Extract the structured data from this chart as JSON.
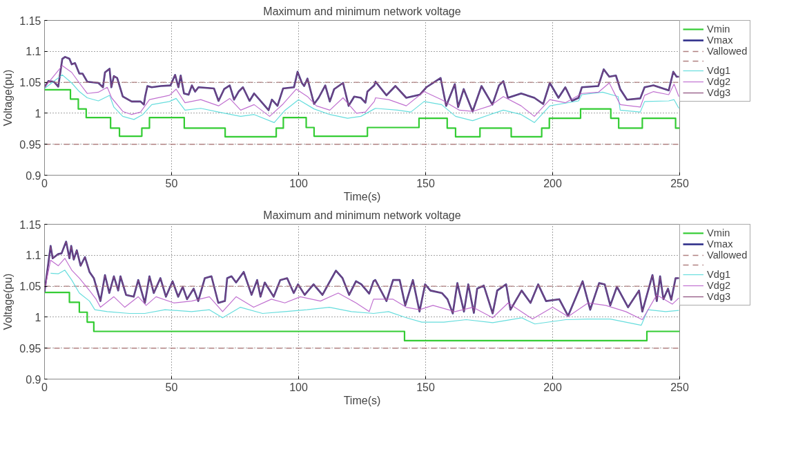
{
  "chart_data": [
    {
      "type": "line",
      "title": "Maximum and minimum network voltage",
      "xlabel": "Time(s)",
      "ylabel": "Voltage(pu)",
      "xlim": [
        0,
        250
      ],
      "ylim": [
        0.9,
        1.15
      ],
      "xticks": [
        0,
        50,
        100,
        150,
        200,
        250
      ],
      "yticks": [
        0.9,
        0.95,
        1,
        1.05,
        1.1,
        1.15
      ],
      "grid": true,
      "legend": "right",
      "series": [
        {
          "name": "Vmin",
          "type": "step",
          "color": "#33cc33",
          "x": [
            0,
            10.2,
            13.3,
            16.4,
            26,
            29.5,
            38.3,
            41.3,
            55,
            71.1,
            91.2,
            94,
            103,
            106.1,
            127.1,
            147.4,
            158.5,
            161.8,
            171.4,
            183.7,
            195.7,
            198.7,
            211,
            222.9,
            226,
            235.3,
            248.4,
            250
          ],
          "values": [
            1.038,
            1.023,
            1.007,
            0.993,
            0.976,
            0.963,
            0.976,
            0.993,
            0.976,
            0.962,
            0.976,
            0.993,
            0.977,
            0.963,
            0.977,
            0.992,
            0.976,
            0.962,
            0.976,
            0.962,
            0.976,
            0.992,
            1.007,
            0.992,
            0.976,
            0.992,
            0.976,
            0.976
          ]
        },
        {
          "name": "Vmax",
          "color": "#2e2e8a",
          "x": [
            0,
            1.5,
            3.7,
            5.4,
            7.0,
            8.1,
            9.8,
            10.7,
            12,
            13.7,
            15,
            16.8,
            21.2,
            23,
            23.8,
            25.6,
            26.3,
            27.3,
            28.6,
            30.8,
            34.3,
            37.8,
            39.1,
            39.6,
            40.5,
            42.2,
            45.7,
            49.6,
            51.4,
            52.7,
            53.6,
            54.9,
            56.7,
            58,
            59.3,
            60.6,
            66.7,
            68.5,
            70.7,
            72.9,
            74.6,
            76.4,
            78.1,
            80.7,
            82.5,
            88.2,
            89.5,
            91.7,
            93.9,
            98.2,
            99.6,
            101.3,
            102.2,
            103.5,
            106.1,
            107.9,
            110.5,
            112.3,
            114,
            117.5,
            119.7,
            121.9,
            124.5,
            126.3,
            127.1,
            129.8,
            130.3,
            134.6,
            138.1,
            142.4,
            147.7,
            150.3,
            155.9,
            158.1,
            161.5,
            162.8,
            165,
            168.5,
            172,
            176.3,
            178.9,
            180.6,
            182.4,
            187.6,
            192.8,
            196.3,
            198.9,
            202.3,
            205,
            207.6,
            210.2,
            211.5,
            218,
            220.1,
            222.3,
            224.9,
            226.6,
            229.3,
            234.5,
            236.2,
            239.7,
            245.7,
            247.5,
            248.8,
            249.7
          ],
          "values": [
            1.042,
            1.052,
            1.051,
            1.043,
            1.088,
            1.091,
            1.088,
            1.079,
            1.081,
            1.064,
            1.064,
            1.051,
            1.049,
            1.042,
            1.066,
            1.072,
            1.042,
            1.06,
            1.057,
            1.027,
            1.019,
            1.019,
            1.014,
            1.027,
            1.044,
            1.042,
            1.044,
            1.045,
            1.062,
            1.042,
            1.061,
            1.032,
            1.03,
            1.045,
            1.035,
            1.042,
            1.04,
            1.02,
            1.039,
            1.045,
            1.022,
            1.035,
            1.042,
            1.02,
            1.032,
            1.005,
            1.022,
            1.012,
            1.04,
            1.042,
            1.067,
            1.049,
            1.044,
            1.056,
            1.015,
            1.025,
            1.045,
            1.019,
            1.039,
            1.049,
            1.012,
            1.027,
            1.025,
            1.017,
            1.035,
            1.045,
            1.051,
            1.029,
            1.044,
            1.025,
            1.03,
            1.042,
            1.057,
            1.012,
            1.047,
            1.01,
            1.039,
            1.003,
            1.044,
            1.014,
            1.045,
            1.052,
            1.025,
            1.032,
            1.025,
            1.015,
            1.049,
            1.025,
            1.042,
            1.02,
            1.025,
            1.042,
            1.044,
            1.071,
            1.059,
            1.061,
            1.039,
            1.022,
            1.024,
            1.042,
            1.045,
            1.037,
            1.067,
            1.059,
            1.059
          ]
        },
        {
          "name": "Vallowed",
          "color": "#b08080",
          "line_style": "dashed",
          "x": [
            0,
            250
          ],
          "values": [
            1.05,
            1.05
          ]
        },
        {
          "color": "#b08080",
          "line_style": "dashed",
          "x": [
            0,
            250
          ],
          "values": [
            0.95,
            0.95
          ]
        },
        {
          "name": "Vdg1",
          "color": "#66dddd",
          "x": [
            0,
            7,
            10.7,
            13.7,
            16.8,
            21.2,
            25.6,
            27.3,
            30.8,
            35.2,
            38.7,
            42.2,
            49.2,
            51.8,
            55.3,
            61.5,
            68.5,
            77.2,
            82.5,
            90.4,
            94.7,
            100,
            106.1,
            112.3,
            119.3,
            124.5,
            129.8,
            130.3,
            139,
            144.2,
            149.4,
            156.3,
            161.8,
            168.5,
            175.4,
            180.6,
            187.6,
            192.8,
            198.9,
            210.2,
            211.5,
            219.7,
            225.8,
            226.6,
            234.5,
            236.2,
            245.7,
            247.8,
            249.7
          ],
          "values": [
            1.04,
            1.062,
            1.049,
            1.035,
            1.025,
            1.02,
            1.029,
            1.01,
            0.995,
            0.99,
            0.998,
            1.014,
            1.019,
            1.024,
            1.005,
            1.008,
            1.002,
            0.995,
            0.998,
            0.985,
            1.005,
            1.022,
            1.007,
            0.998,
            0.992,
            0.995,
            1.007,
            1.008,
            1.005,
            1.002,
            1.019,
            1.014,
            0.995,
            0.988,
            0.998,
            1.005,
            0.998,
            0.985,
            1.012,
            1.02,
            1.03,
            1.034,
            1.027,
            1.005,
            1.002,
            1.019,
            1.02,
            1.022,
            1.008
          ]
        },
        {
          "name": "Vdg2",
          "color": "#c070d0",
          "x": [
            0,
            7,
            10.7,
            13.7,
            16.8,
            21.2,
            24.7,
            26.4,
            30.8,
            34.3,
            37.8,
            41.3,
            49.2,
            51.8,
            55.3,
            61.5,
            68.5,
            72.9,
            77.2,
            82.5,
            88.6,
            93.9,
            99.1,
            103.5,
            107,
            112.3,
            117.5,
            122.8,
            126.3,
            129.8,
            130.3,
            135.5,
            142.4,
            149.4,
            156.3,
            163.3,
            168.5,
            175.4,
            180.6,
            187.6,
            192.8,
            198.9,
            205,
            211.5,
            218,
            222.3,
            226.6,
            234.5,
            236.2,
            239.7,
            245.7,
            247.8,
            249.7
          ],
          "values": [
            1.042,
            1.077,
            1.066,
            1.049,
            1.032,
            1.034,
            1.042,
            1.025,
            1.003,
            0.998,
            1.002,
            1.022,
            1.029,
            1.039,
            1.017,
            1.022,
            1.012,
            1.024,
            1.005,
            1.014,
            0.995,
            1.015,
            1.039,
            1.027,
            1.012,
            1.005,
            1.025,
            1.0,
            1.002,
            1.019,
            1.025,
            1.022,
            1.012,
            1.035,
            1.022,
            1.005,
            1.003,
            1.012,
            1.027,
            1.012,
            0.995,
            1.022,
            1.017,
            1.032,
            1.034,
            1.049,
            1.014,
            1.01,
            1.029,
            1.035,
            1.03,
            1.047,
            1.027
          ]
        },
        {
          "name": "Vdg3",
          "color": "#8a4a7a",
          "x": [
            0,
            1.5,
            3.7,
            5.4,
            7.0,
            8.1,
            9.8,
            10.7,
            12,
            13.7,
            15,
            16.8,
            21.2,
            23,
            23.8,
            25.6,
            26.3,
            27.3,
            28.6,
            30.8,
            34.3,
            37.8,
            39.1,
            39.6,
            40.5,
            42.2,
            45.7,
            49.6,
            51.4,
            52.7,
            53.6,
            54.9,
            56.7,
            58,
            59.3,
            60.6,
            66.7,
            68.5,
            70.7,
            72.9,
            74.6,
            76.4,
            78.1,
            80.7,
            82.5,
            88.2,
            89.5,
            91.7,
            93.9,
            98.2,
            99.6,
            101.3,
            102.2,
            103.5,
            106.1,
            107.9,
            110.5,
            112.3,
            114,
            117.5,
            119.7,
            121.9,
            124.5,
            126.3,
            127.1,
            129.8,
            130.3,
            134.6,
            138.1,
            142.4,
            147.7,
            150.3,
            155.9,
            158.1,
            161.5,
            162.8,
            165,
            168.5,
            172,
            176.3,
            178.9,
            180.6,
            182.4,
            187.6,
            192.8,
            196.3,
            198.9,
            202.3,
            205,
            207.6,
            210.2,
            211.5,
            218,
            220.1,
            222.3,
            224.9,
            226.6,
            229.3,
            234.5,
            236.2,
            239.7,
            245.7,
            247.5,
            248.8,
            249.7
          ],
          "values": [
            1.042,
            1.052,
            1.051,
            1.043,
            1.088,
            1.091,
            1.088,
            1.079,
            1.081,
            1.064,
            1.064,
            1.051,
            1.049,
            1.042,
            1.066,
            1.072,
            1.042,
            1.06,
            1.057,
            1.027,
            1.019,
            1.019,
            1.014,
            1.027,
            1.044,
            1.042,
            1.044,
            1.045,
            1.062,
            1.042,
            1.061,
            1.032,
            1.03,
            1.045,
            1.035,
            1.042,
            1.04,
            1.02,
            1.039,
            1.045,
            1.022,
            1.035,
            1.042,
            1.02,
            1.032,
            1.005,
            1.022,
            1.012,
            1.04,
            1.042,
            1.067,
            1.049,
            1.044,
            1.056,
            1.015,
            1.025,
            1.045,
            1.019,
            1.039,
            1.049,
            1.012,
            1.027,
            1.025,
            1.017,
            1.035,
            1.045,
            1.051,
            1.029,
            1.044,
            1.025,
            1.03,
            1.042,
            1.057,
            1.012,
            1.047,
            1.01,
            1.039,
            1.003,
            1.044,
            1.014,
            1.045,
            1.052,
            1.025,
            1.032,
            1.025,
            1.015,
            1.049,
            1.025,
            1.042,
            1.02,
            1.025,
            1.042,
            1.044,
            1.071,
            1.059,
            1.061,
            1.039,
            1.022,
            1.024,
            1.042,
            1.045,
            1.037,
            1.067,
            1.059,
            1.059
          ]
        }
      ]
    },
    {
      "type": "line",
      "title": "Maximum and minimum network voltage",
      "xlabel": "Time(s)",
      "ylabel": "Voltage(pu)",
      "xlim": [
        0,
        250
      ],
      "ylim": [
        0.9,
        1.15
      ],
      "xticks": [
        0,
        50,
        100,
        150,
        200,
        250
      ],
      "yticks": [
        0.9,
        0.95,
        1,
        1.05,
        1.1,
        1.15
      ],
      "grid": true,
      "legend": "right",
      "series": [
        {
          "name": "Vmin",
          "type": "step",
          "color": "#33cc33",
          "x": [
            0,
            9.8,
            13.7,
            16.8,
            19.4,
            141.7,
            237.1,
            250
          ],
          "values": [
            1.04,
            1.024,
            1.008,
            0.992,
            0.977,
            0.962,
            0.977,
            0.977
          ]
        },
        {
          "name": "Vmax",
          "color": "#2e2e8a",
          "x": [
            0,
            2.4,
            3.2,
            5.4,
            6.7,
            8.5,
            9.8,
            10.5,
            11.5,
            12.7,
            14.2,
            15.9,
            17.7,
            19.4,
            22,
            23.8,
            25.5,
            27.3,
            29,
            29.9,
            32.1,
            35.1,
            36.9,
            39.5,
            41.3,
            43,
            45.6,
            47.8,
            50.4,
            52.6,
            54.4,
            56.1,
            58.7,
            60.5,
            63.1,
            65.7,
            68.4,
            71,
            71.9,
            73.6,
            75.4,
            78.4,
            81.5,
            83.7,
            85,
            86.7,
            90.2,
            92.8,
            95.5,
            98.1,
            99.8,
            102.4,
            105.9,
            109.4,
            112.1,
            114.7,
            117.3,
            119.9,
            122.6,
            124.7,
            127.8,
            129.5,
            130.2,
            134.6,
            137.2,
            139.8,
            142,
            145,
            147.6,
            149.8,
            151.9,
            156.4,
            158.6,
            160.7,
            162.5,
            165.1,
            166.8,
            169,
            170.3,
            172.9,
            176.4,
            178.2,
            181.7,
            183.4,
            187.8,
            191.3,
            194.3,
            197.4,
            202.6,
            206.1,
            211.8,
            214.8,
            218.3,
            220.5,
            222.7,
            225.3,
            229.7,
            234,
            235.3,
            239.3,
            241,
            242.3,
            243.6,
            245.4,
            246.7,
            248.4,
            249.7
          ],
          "values": [
            1.041,
            1.115,
            1.095,
            1.102,
            1.103,
            1.122,
            1.095,
            1.115,
            1.093,
            1.108,
            1.083,
            1.097,
            1.073,
            1.063,
            1.026,
            1.068,
            1.039,
            1.066,
            1.043,
            1.066,
            1.036,
            1.033,
            1.06,
            1.023,
            1.066,
            1.039,
            1.063,
            1.033,
            1.058,
            1.033,
            1.049,
            1.029,
            1.046,
            1.026,
            1.063,
            1.066,
            1.023,
            1.026,
            1.063,
            1.066,
            1.056,
            1.073,
            1.036,
            1.06,
            1.033,
            1.056,
            1.033,
            1.06,
            1.063,
            1.039,
            1.053,
            1.036,
            1.053,
            1.036,
            1.056,
            1.075,
            1.063,
            1.036,
            1.058,
            1.053,
            1.038,
            1.058,
            1.06,
            1.026,
            1.06,
            1.06,
            1.019,
            1.06,
            1.009,
            1.053,
            1.043,
            1.039,
            1.029,
            1.006,
            1.055,
            1.009,
            1.053,
            1.007,
            1.046,
            1.051,
            1.006,
            1.043,
            1.053,
            1.012,
            1.043,
            1.023,
            1.053,
            1.026,
            1.029,
            1.002,
            1.058,
            1.012,
            1.055,
            1.053,
            1.019,
            1.049,
            1.016,
            1.043,
            1.009,
            1.068,
            1.026,
            1.066,
            1.029,
            1.046,
            1.028,
            1.063,
            1.063
          ]
        },
        {
          "name": "Vallowed",
          "color": "#b08080",
          "line_style": "dashed",
          "x": [
            0,
            250
          ],
          "values": [
            1.05,
            1.05
          ]
        },
        {
          "color": "#b08080",
          "line_style": "dashed",
          "x": [
            0,
            250
          ],
          "values": [
            0.95,
            0.95
          ]
        },
        {
          "name": "Vdg1",
          "color": "#66dddd",
          "x": [
            2.4,
            5.4,
            8,
            10.7,
            13.7,
            17.7,
            19.8,
            24.7,
            33.4,
            39.5,
            47.4,
            57.9,
            64.9,
            70.1,
            77.1,
            85.8,
            94.6,
            103.3,
            112.1,
            120.8,
            129.5,
            135.4,
            142.4,
            148.5,
            157.2,
            166,
            176.4,
            187.8,
            193,
            205.2,
            214,
            222.7,
            234.9,
            237.5,
            244.5,
            249.7
          ],
          "values": [
            1.071,
            1.07,
            1.076,
            1.06,
            1.039,
            1.026,
            1.012,
            1.009,
            1.006,
            1.006,
            1.012,
            1.009,
            1.012,
            0.999,
            1.016,
            1.006,
            1.009,
            1.012,
            1.016,
            1.009,
            1.006,
            1.009,
            0.999,
            0.992,
            0.992,
            0.996,
            0.991,
            0.999,
            0.989,
            0.996,
            0.997,
            0.997,
            0.987,
            1.012,
            1.009,
            1.011
          ]
        },
        {
          "name": "Vdg2",
          "color": "#c070d0",
          "x": [
            0,
            2.4,
            5.4,
            8,
            10.7,
            13.7,
            17.7,
            20.3,
            22,
            27.3,
            31.6,
            36.9,
            40,
            43.9,
            50.9,
            57.9,
            64.9,
            70.1,
            75.4,
            82.3,
            89.3,
            94.6,
            100.7,
            108.6,
            115.6,
            122.6,
            127.8,
            129.5,
            130.2,
            137.2,
            142.4,
            147.6,
            152.9,
            161.6,
            168.6,
            176.4,
            182.5,
            192.1,
            200,
            206.1,
            214,
            220.9,
            228.8,
            235.3,
            241,
            247.1,
            249.7
          ],
          "values": [
            1.043,
            1.092,
            1.083,
            1.095,
            1.076,
            1.063,
            1.043,
            1.029,
            1.016,
            1.033,
            1.016,
            1.033,
            1.019,
            1.033,
            1.023,
            1.026,
            1.033,
            1.009,
            1.033,
            1.016,
            1.029,
            1.023,
            1.033,
            1.026,
            1.039,
            1.023,
            1.009,
            1.029,
            1.029,
            1.029,
            1.016,
            1.012,
            1.019,
            1.009,
            1.016,
            0.999,
            1.023,
            0.997,
            1.016,
            1.001,
            1.023,
            1.019,
            1.009,
            0.996,
            1.036,
            1.021,
            1.031
          ]
        },
        {
          "name": "Vdg3",
          "color": "#8a4a7a",
          "x": [
            0,
            2.4,
            3.2,
            5.4,
            6.7,
            8.5,
            9.8,
            10.5,
            11.5,
            12.7,
            14.2,
            15.9,
            17.7,
            19.4,
            22,
            23.8,
            25.5,
            27.3,
            29,
            29.9,
            32.1,
            35.1,
            36.9,
            39.5,
            41.3,
            43,
            45.6,
            47.8,
            50.4,
            52.6,
            54.4,
            56.1,
            58.7,
            60.5,
            63.1,
            65.7,
            68.4,
            71,
            71.9,
            73.6,
            75.4,
            78.4,
            81.5,
            83.7,
            85,
            86.7,
            90.2,
            92.8,
            95.5,
            98.1,
            99.8,
            102.4,
            105.9,
            109.4,
            112.1,
            114.7,
            117.3,
            119.9,
            122.6,
            124.7,
            127.8,
            129.5,
            130.2,
            134.6,
            137.2,
            139.8,
            142,
            145,
            147.6,
            149.8,
            151.9,
            156.4,
            158.6,
            160.7,
            162.5,
            165.1,
            166.8,
            169,
            170.3,
            172.9,
            176.4,
            178.2,
            181.7,
            183.4,
            187.8,
            191.3,
            194.3,
            197.4,
            202.6,
            206.1,
            211.8,
            214.8,
            218.3,
            220.5,
            222.7,
            225.3,
            229.7,
            234,
            235.3,
            239.3,
            241,
            242.3,
            243.6,
            245.4,
            246.7,
            248.4,
            249.7
          ],
          "values": [
            1.041,
            1.115,
            1.095,
            1.102,
            1.103,
            1.122,
            1.095,
            1.115,
            1.093,
            1.108,
            1.083,
            1.097,
            1.073,
            1.063,
            1.026,
            1.068,
            1.039,
            1.066,
            1.043,
            1.066,
            1.036,
            1.033,
            1.06,
            1.023,
            1.066,
            1.039,
            1.063,
            1.033,
            1.058,
            1.033,
            1.049,
            1.029,
            1.046,
            1.026,
            1.063,
            1.066,
            1.023,
            1.026,
            1.063,
            1.066,
            1.056,
            1.073,
            1.036,
            1.06,
            1.033,
            1.056,
            1.033,
            1.06,
            1.063,
            1.039,
            1.053,
            1.036,
            1.053,
            1.036,
            1.056,
            1.075,
            1.063,
            1.036,
            1.058,
            1.053,
            1.038,
            1.058,
            1.06,
            1.026,
            1.06,
            1.06,
            1.019,
            1.06,
            1.009,
            1.053,
            1.043,
            1.039,
            1.029,
            1.006,
            1.055,
            1.009,
            1.053,
            1.007,
            1.046,
            1.051,
            1.006,
            1.043,
            1.053,
            1.012,
            1.043,
            1.023,
            1.053,
            1.026,
            1.029,
            1.002,
            1.058,
            1.012,
            1.055,
            1.053,
            1.019,
            1.049,
            1.016,
            1.043,
            1.009,
            1.068,
            1.026,
            1.066,
            1.029,
            1.046,
            1.028,
            1.063,
            1.063
          ]
        }
      ]
    }
  ]
}
